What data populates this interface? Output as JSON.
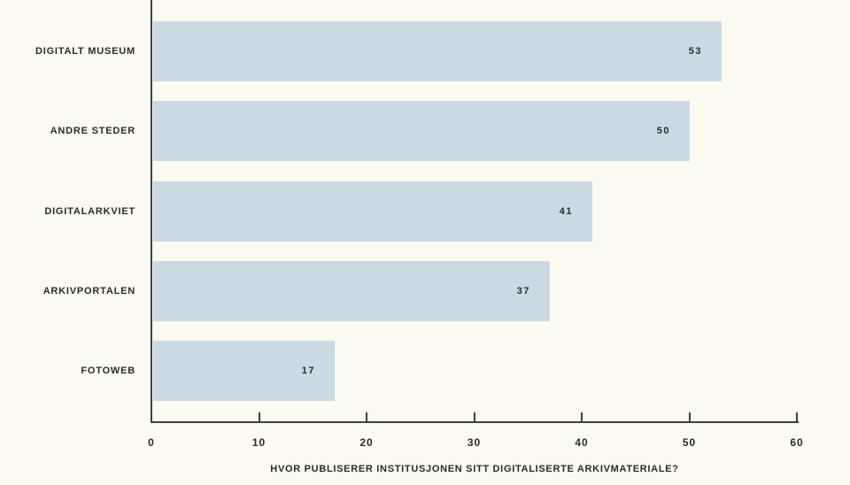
{
  "chart_data": {
    "type": "bar",
    "orientation": "horizontal",
    "categories": [
      "DIGITALT MUSEUM",
      "ANDRE STEDER",
      "DIGITALARKVIET",
      "ARKIVPORTALEN",
      "FOTOWEB"
    ],
    "values": [
      53,
      50,
      41,
      37,
      17
    ],
    "title": "",
    "xlabel": "HVOR PUBLISERER INSTITUSJONEN SITT DIGITALISERTE ARKIVMATERIALE?",
    "ylabel": "",
    "xlim": [
      0,
      60
    ],
    "xticks": [
      0,
      10,
      20,
      30,
      40,
      50,
      60
    ],
    "grid": false,
    "value_labels": true,
    "legend": false,
    "colors": {
      "background": "#FAFAF1",
      "bar": "#CBDAE2",
      "axis": "#3F3F3F",
      "text": "#2B2B2B"
    }
  }
}
